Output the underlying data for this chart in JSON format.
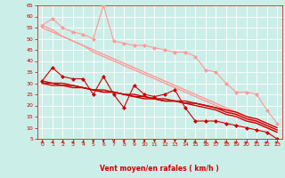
{
  "title": "",
  "xlabel": "Vent moyen/en rafales ( km/h )",
  "ylabel": "",
  "background_color": "#cceee8",
  "grid_color": "#ffffff",
  "x_ticks": [
    0,
    1,
    2,
    3,
    4,
    5,
    6,
    7,
    8,
    9,
    10,
    11,
    12,
    13,
    14,
    15,
    16,
    17,
    18,
    19,
    20,
    21,
    22,
    23
  ],
  "y_ticks": [
    5,
    10,
    15,
    20,
    25,
    30,
    35,
    40,
    45,
    50,
    55,
    60,
    65
  ],
  "xlim": [
    -0.5,
    23.5
  ],
  "ylim": [
    5,
    65
  ],
  "series": [
    {
      "x": [
        0,
        1,
        2,
        3,
        4,
        5,
        6,
        7,
        8,
        9,
        10,
        11,
        12,
        13,
        14,
        15,
        16,
        17,
        18,
        19,
        20,
        21,
        22,
        23
      ],
      "y": [
        56,
        59,
        55,
        53,
        52,
        50,
        65,
        49,
        48,
        47,
        47,
        46,
        45,
        44,
        44,
        42,
        36,
        35,
        30,
        26,
        26,
        25,
        18,
        12
      ],
      "color": "#ff9999",
      "linewidth": 0.8,
      "markersize": 2.5,
      "linestyle": "-"
    },
    {
      "x": [
        0,
        1,
        2,
        3,
        4,
        5,
        6,
        7,
        8,
        9,
        10,
        11,
        12,
        13,
        14,
        15,
        16,
        17,
        18,
        19,
        20,
        21,
        22,
        23
      ],
      "y": [
        55,
        53,
        51,
        49,
        47,
        45,
        43,
        41,
        39,
        37,
        35,
        33,
        31,
        29,
        27,
        25,
        23,
        21,
        19,
        17,
        15,
        13,
        11,
        9
      ],
      "color": "#ff9999",
      "linewidth": 1.0,
      "markersize": 0,
      "linestyle": "-"
    },
    {
      "x": [
        0,
        1,
        2,
        3,
        4,
        5,
        6,
        7,
        8,
        9,
        10,
        11,
        12,
        13,
        14,
        15,
        16,
        17,
        18,
        19,
        20,
        21,
        22,
        23
      ],
      "y": [
        56,
        54,
        51,
        49,
        47,
        44,
        42,
        40,
        38,
        36,
        34,
        32,
        30,
        28,
        26,
        24,
        22,
        20,
        18,
        16,
        14,
        12,
        10,
        8
      ],
      "color": "#ff9999",
      "linewidth": 1.0,
      "markersize": 0,
      "linestyle": "-"
    },
    {
      "x": [
        0,
        1,
        2,
        3,
        4,
        5,
        6,
        7,
        8,
        9,
        10,
        11,
        12,
        13,
        14,
        15,
        16,
        17,
        18,
        19,
        20,
        21,
        22,
        23
      ],
      "y": [
        31,
        37,
        33,
        32,
        32,
        25,
        33,
        25,
        19,
        29,
        25,
        24,
        25,
        27,
        19,
        13,
        13,
        13,
        12,
        11,
        10,
        9,
        8,
        5
      ],
      "color": "#cc0000",
      "linewidth": 0.8,
      "markersize": 2.5,
      "linestyle": "-"
    },
    {
      "x": [
        0,
        1,
        2,
        3,
        4,
        5,
        6,
        7,
        8,
        9,
        10,
        11,
        12,
        13,
        14,
        15,
        16,
        17,
        18,
        19,
        20,
        21,
        22,
        23
      ],
      "y": [
        31,
        30,
        30,
        29,
        28,
        27,
        26,
        26,
        25,
        24,
        23,
        23,
        22,
        22,
        21,
        20,
        19,
        18,
        16,
        15,
        13,
        12,
        10,
        8
      ],
      "color": "#cc0000",
      "linewidth": 1.0,
      "markersize": 0,
      "linestyle": "-"
    },
    {
      "x": [
        0,
        1,
        2,
        3,
        4,
        5,
        6,
        7,
        8,
        9,
        10,
        11,
        12,
        13,
        14,
        15,
        16,
        17,
        18,
        19,
        20,
        21,
        22,
        23
      ],
      "y": [
        30,
        30,
        29,
        29,
        28,
        27,
        27,
        26,
        25,
        25,
        24,
        23,
        23,
        22,
        22,
        21,
        20,
        19,
        18,
        17,
        15,
        14,
        12,
        10
      ],
      "color": "#cc0000",
      "linewidth": 1.0,
      "markersize": 0,
      "linestyle": "-"
    },
    {
      "x": [
        0,
        1,
        2,
        3,
        4,
        5,
        6,
        7,
        8,
        9,
        10,
        11,
        12,
        13,
        14,
        15,
        16,
        17,
        18,
        19,
        20,
        21,
        22,
        23
      ],
      "y": [
        30,
        29,
        29,
        28,
        28,
        27,
        26,
        26,
        25,
        24,
        24,
        23,
        22,
        22,
        21,
        21,
        20,
        19,
        17,
        16,
        14,
        13,
        11,
        9
      ],
      "color": "#cc0000",
      "linewidth": 1.0,
      "markersize": 0,
      "linestyle": "-"
    }
  ],
  "arrow_angles": [
    225,
    225,
    225,
    225,
    225,
    270,
    270,
    270,
    270,
    270,
    270,
    270,
    270,
    270,
    270,
    315,
    315,
    0,
    0,
    45,
    45,
    45,
    45,
    45
  ]
}
